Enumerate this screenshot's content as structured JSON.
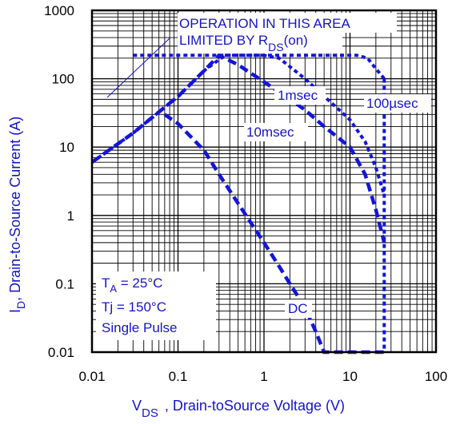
{
  "chart_data": {
    "type": "line",
    "xlabel": "V",
    "xlabel_sub": "DS",
    "xlabel_rest": ", Drain-toSource Voltage (V)",
    "ylabel": "I",
    "ylabel_sub": "D",
    "ylabel_rest": ",  Drain-to-Source Current (A)",
    "x_scale": "log",
    "y_scale": "log",
    "xlim": [
      0.01,
      100
    ],
    "ylim": [
      0.01,
      1000
    ],
    "x_ticks": [
      "0.01",
      "0.1",
      "1",
      "10",
      "100"
    ],
    "y_ticks": [
      "0.01",
      "0.1",
      "1",
      "10",
      "100",
      "1000"
    ],
    "grid": true,
    "annotations": {
      "region_line1": "OPERATION IN THIS AREA",
      "region_line2": "LIMITED BY R",
      "region_sub": "DS",
      "region_tail": "(on)",
      "cond_ta": "T",
      "cond_ta_sub": "A",
      "cond_ta_rest": " = 25°C",
      "cond_tj": "Tj = 150°C",
      "cond_pulse": "Single Pulse"
    },
    "series": [
      {
        "name": "100µsec",
        "x": [
          0.35,
          0.5,
          1,
          2,
          4,
          8,
          12,
          16,
          20,
          25
        ],
        "y": [
          220,
          220,
          220,
          220,
          220,
          220,
          220,
          200,
          140,
          100
        ]
      },
      {
        "name": "1msec",
        "x": [
          0.01,
          0.03,
          0.1,
          0.2,
          0.35,
          1,
          1.5,
          3,
          6,
          10,
          15,
          20,
          25
        ],
        "y": [
          6,
          16,
          55,
          130,
          220,
          220,
          200,
          100,
          45,
          25,
          12,
          5,
          2
        ]
      },
      {
        "name": "10msec",
        "x": [
          0.01,
          0.03,
          0.1,
          0.2,
          0.3,
          0.5,
          1,
          2,
          3,
          5,
          10,
          15,
          20,
          25
        ],
        "y": [
          6,
          16,
          55,
          130,
          220,
          160,
          90,
          50,
          35,
          20,
          10,
          4,
          1.2,
          0.4
        ]
      },
      {
        "name": "DC",
        "x": [
          0.07,
          0.1,
          0.2,
          0.3,
          0.5,
          1,
          1.5,
          2,
          3,
          4,
          5,
          10,
          20,
          25
        ],
        "y": [
          30,
          22,
          9,
          4,
          1.5,
          0.4,
          0.18,
          0.1,
          0.045,
          0.02,
          0.01,
          0.01,
          0.01,
          0.01
        ]
      }
    ]
  }
}
